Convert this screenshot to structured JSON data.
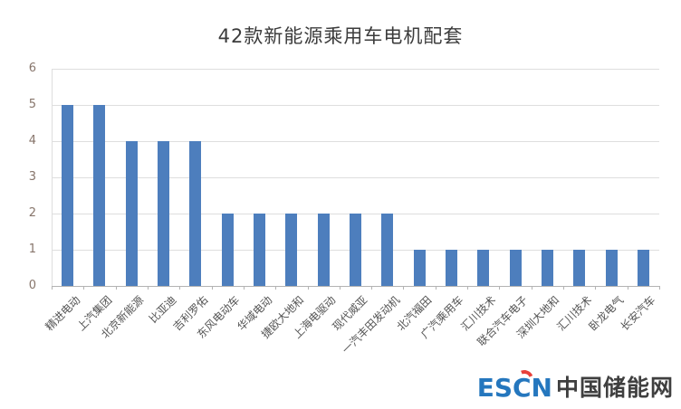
{
  "chart_data": {
    "type": "bar",
    "title": "42款新能源乘用车电机配套",
    "categories": [
      "精进电动",
      "上汽集团",
      "北京新能源",
      "比亚迪",
      "吉利罗佑",
      "东风电动车",
      "华域电动",
      "捷欧大地和",
      "上海电驱动",
      "现代威亚",
      "一汽丰田发动机",
      "北汽福田",
      "广汽乘用车",
      "汇川技术",
      "联合汽车电子",
      "深圳大地和",
      "汇川技术",
      "卧龙电气",
      "长安汽车"
    ],
    "values": [
      5,
      5,
      4,
      4,
      4,
      2,
      2,
      2,
      2,
      2,
      2,
      1,
      1,
      1,
      1,
      1,
      1,
      1,
      1
    ],
    "xlabel": "",
    "ylabel": "",
    "ylim": [
      0,
      6
    ],
    "yticks": [
      0,
      1,
      2,
      3,
      4,
      5,
      6
    ],
    "grid": true,
    "legend": false,
    "bar_color": "#4d7ebd",
    "gridline_color": "#dedede",
    "baseline_color": "#b3b3b3",
    "ytick_color": "#87756b",
    "xtick_label_color": "#545454"
  },
  "watermark": {
    "escn": "ESCN",
    "site_name": "中国储能网",
    "escn_color": "#2577be",
    "accent_color": "#e8403a",
    "site_name_color": "#3f3f3f"
  }
}
